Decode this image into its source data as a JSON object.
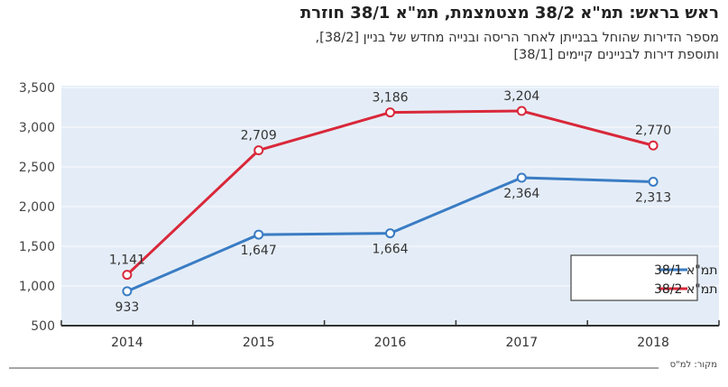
{
  "header": {
    "title": "ראש בראש: תמ\"א 38/2 מצטמצמת, תמ\"א 38/1 חוזרת",
    "subtitle_line1": "מספר הדירות שהוחל בבנייתן לאחר הריסה ובנייה מחדש של בניין [38/2],",
    "subtitle_line2": "ותוספת דירות לבניינים קיימים [38/1]"
  },
  "source": "מקור: למ\"ס",
  "colors": {
    "plot_bg": "#e4edf7",
    "series_381": "#3a7cc4",
    "series_382": "#d9283a",
    "grid": "#f3f7fc",
    "axis": "#333333"
  },
  "chart_data": {
    "type": "line",
    "title": "ראש בראש: תמ\"א 38/2 מצטמצמת, תמ\"א 38/1 חוזרת",
    "xlabel": "",
    "ylabel": "",
    "categories": [
      "2014",
      "2015",
      "2016",
      "2017",
      "2018"
    ],
    "ylim": [
      500,
      3500
    ],
    "yticks": [
      "3,500",
      "3,000",
      "2,500",
      "2,000",
      "1,500",
      "1,000",
      "500"
    ],
    "ytick_values": [
      3500,
      3000,
      2500,
      2000,
      1500,
      1000,
      500
    ],
    "grid": true,
    "legend_position": "bottom-right",
    "series": [
      {
        "name": "תמ\"א 38/1",
        "key": "s381",
        "values": [
          933,
          1647,
          1664,
          2364,
          2313
        ],
        "labels": [
          "933",
          "1,647",
          "1,664",
          "2,364",
          "2,313"
        ],
        "label_pos": [
          "below",
          "below",
          "below",
          "below",
          "below"
        ]
      },
      {
        "name": "תמ\"א 38/2",
        "key": "s382",
        "values": [
          1141,
          2709,
          3186,
          3204,
          2770
        ],
        "labels": [
          "1,141",
          "2,709",
          "3,186",
          "3,204",
          "2,770"
        ],
        "label_pos": [
          "above",
          "above",
          "above",
          "above",
          "above"
        ]
      }
    ]
  }
}
